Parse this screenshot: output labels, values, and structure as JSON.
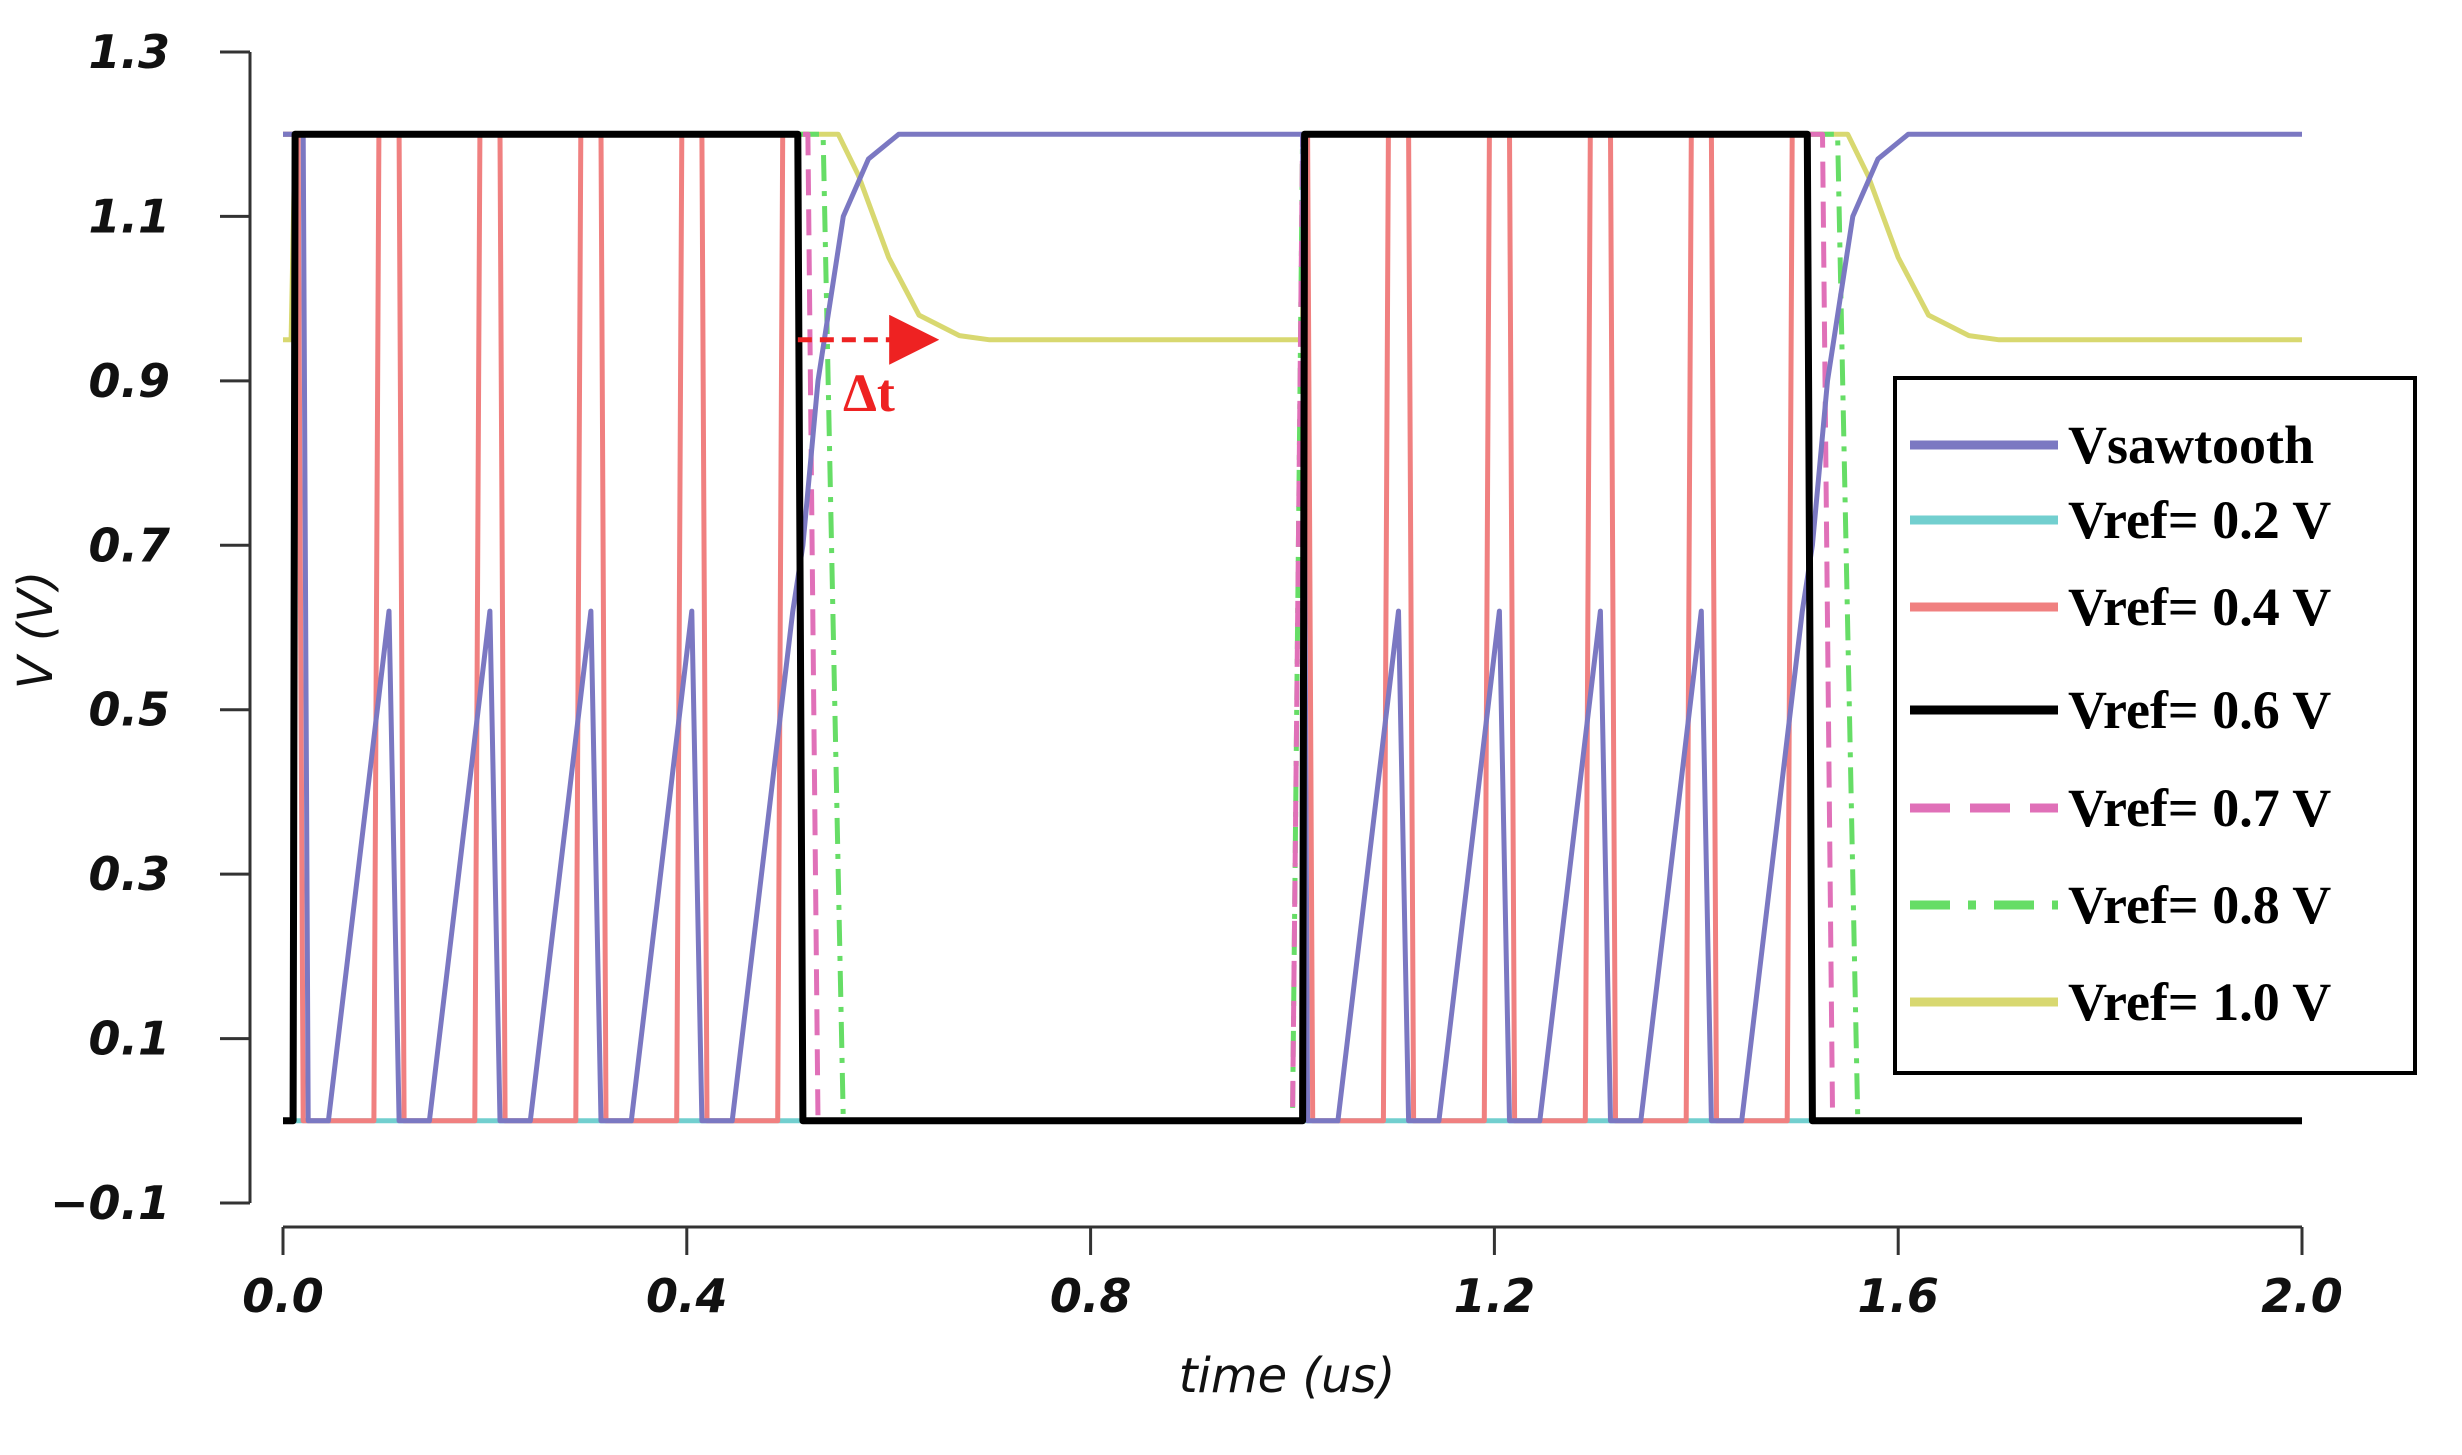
{
  "chart_data": {
    "type": "line",
    "title": "",
    "xlabel": "time (us)",
    "ylabel": "V (V)",
    "xlim": [
      0.0,
      2.0
    ],
    "ylim": [
      -0.1,
      1.3
    ],
    "xticks": [
      "0.0",
      "0.4",
      "0.8",
      "1.2",
      "1.6",
      "2.0"
    ],
    "xtick_values": [
      0.0,
      0.4,
      0.8,
      1.2,
      1.6,
      2.0
    ],
    "yticks": [
      "1.3",
      "1.1",
      "0.9",
      "0.7",
      "0.5",
      "0.3",
      "0.1",
      "−0.1"
    ],
    "ytick_values": [
      1.3,
      1.1,
      0.9,
      0.7,
      0.5,
      0.3,
      0.1,
      -0.1
    ],
    "grid": false,
    "legend_position": "right",
    "annotation": {
      "text": "Δt",
      "from": [
        0.51,
        0.95
      ],
      "to": [
        0.65,
        0.95
      ],
      "color": "#ee2222"
    },
    "series": [
      {
        "name": "Vsawtooth",
        "color": "#7b78c2",
        "style": "solid",
        "points": [
          [
            0.0,
            1.2
          ],
          [
            0.02,
            1.2
          ],
          [
            0.025,
            0.0
          ],
          [
            0.045,
            0.0
          ],
          [
            0.105,
            0.62
          ],
          [
            0.115,
            0.0
          ],
          [
            0.145,
            0.0
          ],
          [
            0.205,
            0.62
          ],
          [
            0.215,
            0.0
          ],
          [
            0.245,
            0.0
          ],
          [
            0.305,
            0.62
          ],
          [
            0.315,
            0.0
          ],
          [
            0.345,
            0.0
          ],
          [
            0.405,
            0.62
          ],
          [
            0.415,
            0.0
          ],
          [
            0.445,
            0.0
          ],
          [
            0.505,
            0.62
          ],
          [
            0.515,
            0.7
          ],
          [
            0.53,
            0.9
          ],
          [
            0.555,
            1.1
          ],
          [
            0.58,
            1.17
          ],
          [
            0.61,
            1.2
          ],
          [
            1.01,
            1.2
          ],
          [
            1.015,
            0.0
          ],
          [
            1.045,
            0.0
          ],
          [
            1.105,
            0.62
          ],
          [
            1.115,
            0.0
          ],
          [
            1.145,
            0.0
          ],
          [
            1.205,
            0.62
          ],
          [
            1.215,
            0.0
          ],
          [
            1.245,
            0.0
          ],
          [
            1.305,
            0.62
          ],
          [
            1.315,
            0.0
          ],
          [
            1.345,
            0.0
          ],
          [
            1.405,
            0.62
          ],
          [
            1.415,
            0.0
          ],
          [
            1.445,
            0.0
          ],
          [
            1.505,
            0.62
          ],
          [
            1.515,
            0.7
          ],
          [
            1.53,
            0.9
          ],
          [
            1.555,
            1.1
          ],
          [
            1.58,
            1.17
          ],
          [
            1.61,
            1.2
          ],
          [
            2.0,
            1.2
          ]
        ]
      },
      {
        "name": "Vref= 0.2 V",
        "color": "#72cfcf",
        "style": "solid",
        "points": [
          [
            0.0,
            0.0
          ],
          [
            0.51,
            0.0
          ],
          [
            1.0,
            0.0
          ],
          [
            1.51,
            0.0
          ],
          [
            2.0,
            0.0
          ]
        ]
      },
      {
        "name": "Vref= 0.4 V",
        "color": "#f08080",
        "style": "solid",
        "points": [
          [
            0.0,
            1.2
          ],
          [
            0.015,
            1.2
          ],
          [
            0.02,
            0.0
          ],
          [
            0.09,
            0.0
          ],
          [
            0.095,
            1.2
          ],
          [
            0.115,
            1.2
          ],
          [
            0.12,
            0.0
          ],
          [
            0.19,
            0.0
          ],
          [
            0.195,
            1.2
          ],
          [
            0.215,
            1.2
          ],
          [
            0.22,
            0.0
          ],
          [
            0.29,
            0.0
          ],
          [
            0.295,
            1.2
          ],
          [
            0.315,
            1.2
          ],
          [
            0.32,
            0.0
          ],
          [
            0.39,
            0.0
          ],
          [
            0.395,
            1.2
          ],
          [
            0.415,
            1.2
          ],
          [
            0.42,
            0.0
          ],
          [
            0.49,
            0.0
          ],
          [
            0.495,
            1.2
          ],
          [
            0.51,
            1.2
          ],
          [
            0.515,
            0.0
          ],
          [
            1.01,
            0.0
          ],
          [
            1.015,
            1.2
          ],
          [
            1.02,
            0.0
          ],
          [
            1.09,
            0.0
          ],
          [
            1.095,
            1.2
          ],
          [
            1.115,
            1.2
          ],
          [
            1.12,
            0.0
          ],
          [
            1.19,
            0.0
          ],
          [
            1.195,
            1.2
          ],
          [
            1.215,
            1.2
          ],
          [
            1.22,
            0.0
          ],
          [
            1.29,
            0.0
          ],
          [
            1.295,
            1.2
          ],
          [
            1.315,
            1.2
          ],
          [
            1.32,
            0.0
          ],
          [
            1.39,
            0.0
          ],
          [
            1.395,
            1.2
          ],
          [
            1.415,
            1.2
          ],
          [
            1.42,
            0.0
          ],
          [
            1.49,
            0.0
          ],
          [
            1.495,
            1.2
          ],
          [
            1.51,
            1.2
          ],
          [
            1.515,
            0.0
          ],
          [
            2.0,
            0.0
          ]
        ]
      },
      {
        "name": "Vref= 0.6 V",
        "color": "#000000",
        "style": "solid",
        "points": [
          [
            0.0,
            0.0
          ],
          [
            0.01,
            0.0
          ],
          [
            0.012,
            1.2
          ],
          [
            0.51,
            1.2
          ],
          [
            0.515,
            0.0
          ],
          [
            1.01,
            0.0
          ],
          [
            1.012,
            1.2
          ],
          [
            1.51,
            1.2
          ],
          [
            1.515,
            0.0
          ],
          [
            2.0,
            0.0
          ]
        ]
      },
      {
        "name": "Vref= 0.7 V",
        "color": "#e070b8",
        "style": "dashed",
        "points": [
          [
            0.0,
            1.2
          ],
          [
            0.52,
            1.2
          ],
          [
            0.53,
            0.0
          ],
          [
            1.0,
            0.0
          ],
          [
            1.01,
            1.2
          ],
          [
            1.525,
            1.2
          ],
          [
            1.535,
            0.0
          ],
          [
            2.0,
            0.0
          ]
        ]
      },
      {
        "name": "Vref= 0.8 V",
        "color": "#66dd66",
        "style": "dashdot",
        "points": [
          [
            0.0,
            1.2
          ],
          [
            0.535,
            1.2
          ],
          [
            0.555,
            0.0
          ],
          [
            1.0,
            0.0
          ],
          [
            1.01,
            1.2
          ],
          [
            1.54,
            1.2
          ],
          [
            1.56,
            0.0
          ],
          [
            2.0,
            0.0
          ]
        ]
      },
      {
        "name": "Vref= 1.0 V",
        "color": "#d8d870",
        "style": "solid",
        "points": [
          [
            0.0,
            0.95
          ],
          [
            0.008,
            0.95
          ],
          [
            0.012,
            1.2
          ],
          [
            0.55,
            1.2
          ],
          [
            0.57,
            1.15
          ],
          [
            0.6,
            1.05
          ],
          [
            0.63,
            0.98
          ],
          [
            0.67,
            0.955
          ],
          [
            0.7,
            0.95
          ],
          [
            1.01,
            0.95
          ],
          [
            1.012,
            1.2
          ],
          [
            1.55,
            1.2
          ],
          [
            1.57,
            1.15
          ],
          [
            1.6,
            1.05
          ],
          [
            1.63,
            0.98
          ],
          [
            1.67,
            0.955
          ],
          [
            1.7,
            0.95
          ],
          [
            2.0,
            0.95
          ]
        ]
      }
    ]
  }
}
